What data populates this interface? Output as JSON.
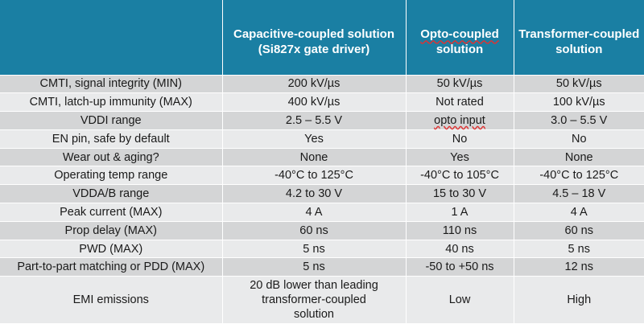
{
  "table": {
    "headers": [
      "",
      "Capacitive-coupled solution\n(Si827x gate driver)",
      "Opto-coupled\nsolution",
      "Transformer-coupled\nsolution"
    ],
    "rows": [
      [
        "CMTI, signal integrity (MIN)",
        "200 kV/µs",
        "50 kV/µs",
        "50 kV/µs"
      ],
      [
        "CMTI, latch-up immunity (MAX)",
        "400 kV/µs",
        "Not rated",
        "100 kV/µs"
      ],
      [
        "VDDI range",
        "2.5 – 5.5 V",
        "opto input",
        "3.0 – 5.5 V"
      ],
      [
        "EN pin, safe by default",
        "Yes",
        "No",
        "No"
      ],
      [
        "Wear out & aging?",
        "None",
        "Yes",
        "None"
      ],
      [
        "Operating temp range",
        "-40°C to 125°C",
        "-40°C to 105°C",
        "-40°C to 125°C"
      ],
      [
        "VDDA/B range",
        "4.2 to 30 V",
        "15 to 30 V",
        "4.5 – 18 V"
      ],
      [
        "Peak current (MAX)",
        "4 A",
        "1 A",
        "4 A"
      ],
      [
        "Prop delay (MAX)",
        "60 ns",
        "110 ns",
        "60 ns"
      ],
      [
        "PWD (MAX)",
        "5 ns",
        "40 ns",
        "5 ns"
      ],
      [
        "Part-to-part matching or PDD (MAX)",
        "5 ns",
        "-50 to +50 ns",
        "12 ns"
      ],
      [
        "EMI emissions",
        "20 dB lower than leading\ntransformer-coupled\nsolution",
        "Low",
        "High"
      ]
    ]
  },
  "colors": {
    "header_bg": "#1a7fa3",
    "row_dark": "#d4d5d6",
    "row_light": "#e9eaeb"
  }
}
